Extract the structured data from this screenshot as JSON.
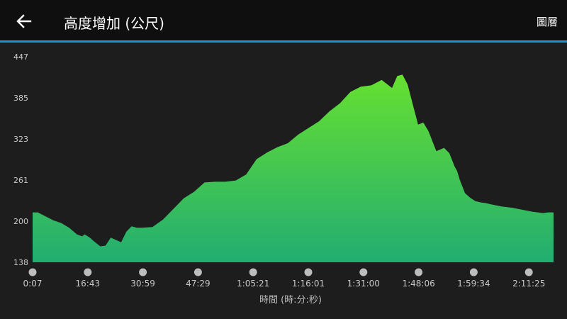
{
  "header": {
    "title": "高度增加 (公尺)",
    "layers_label": "圖層",
    "back_icon": "arrow-left-icon"
  },
  "colors": {
    "accent": "#1f93d8",
    "fill_top": "#66e030",
    "fill_bottom": "#22ad72",
    "background": "#1d1d1d",
    "marker": "#bdbdbd"
  },
  "chart_data": {
    "type": "area",
    "title": "",
    "xlabel": "時間 (時:分:秒)",
    "ylabel": "",
    "ylim": [
      138,
      447
    ],
    "yticks": [
      "447",
      "385",
      "323",
      "261",
      "200",
      "138"
    ],
    "xticks": [
      "0:07",
      "16:43",
      "30:59",
      "47:29",
      "1:05:21",
      "1:16:01",
      "1:31:00",
      "1:48:06",
      "1:59:34",
      "2:11:25"
    ],
    "xlim": [
      0,
      1
    ],
    "x": [
      0.0,
      0.01,
      0.025,
      0.04,
      0.055,
      0.07,
      0.085,
      0.095,
      0.1,
      0.11,
      0.12,
      0.13,
      0.14,
      0.15,
      0.17,
      0.18,
      0.19,
      0.2,
      0.21,
      0.23,
      0.25,
      0.27,
      0.29,
      0.31,
      0.33,
      0.35,
      0.37,
      0.39,
      0.41,
      0.43,
      0.45,
      0.47,
      0.49,
      0.51,
      0.53,
      0.55,
      0.57,
      0.59,
      0.61,
      0.63,
      0.65,
      0.67,
      0.69,
      0.7,
      0.71,
      0.72,
      0.73,
      0.74,
      0.75,
      0.76,
      0.775,
      0.79,
      0.8,
      0.81,
      0.815,
      0.82,
      0.83,
      0.84,
      0.85,
      0.86,
      0.87,
      0.88,
      0.9,
      0.92,
      0.94,
      0.96,
      0.97,
      0.98,
      0.99,
      1.0
    ],
    "series": [
      {
        "values": [
          213,
          213,
          207,
          201,
          197,
          190,
          180,
          177,
          180,
          175,
          168,
          162,
          163,
          175,
          168,
          184,
          192,
          190,
          190,
          191,
          202,
          218,
          234,
          244,
          258,
          259,
          259,
          261,
          270,
          293,
          303,
          311,
          317,
          330,
          340,
          350,
          365,
          377,
          394,
          402,
          404,
          412,
          400,
          418,
          420,
          405,
          375,
          345,
          348,
          335,
          305,
          310,
          302,
          282,
          275,
          262,
          242,
          235,
          230,
          228,
          227,
          225,
          222,
          220,
          217,
          214,
          213,
          212,
          213,
          213
        ]
      }
    ],
    "x_markers": 10,
    "grid": false,
    "legend": "none"
  }
}
